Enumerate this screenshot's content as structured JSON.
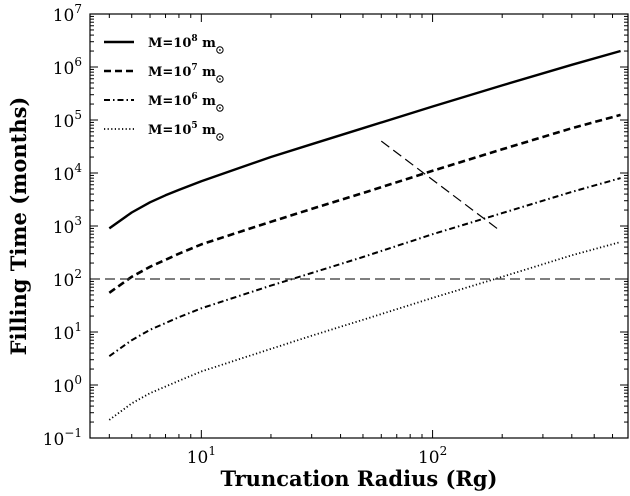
{
  "chart_data": {
    "type": "line",
    "xlabel": "Truncation Radius (Rg)",
    "ylabel": "Filling Time (months)",
    "x_scale": "log",
    "y_scale": "log",
    "xlim": [
      3.3,
      700
    ],
    "ylim": [
      0.1,
      10000000
    ],
    "x_ticks": [
      {
        "value": 10,
        "base": "10",
        "exp": "1"
      },
      {
        "value": 100,
        "base": "10",
        "exp": "2"
      }
    ],
    "y_ticks": [
      {
        "value": 0.1,
        "base": "10",
        "exp": "−1"
      },
      {
        "value": 1,
        "base": "10",
        "exp": "0"
      },
      {
        "value": 10,
        "base": "10",
        "exp": "1"
      },
      {
        "value": 100,
        "base": "10",
        "exp": "2"
      },
      {
        "value": 1000,
        "base": "10",
        "exp": "3"
      },
      {
        "value": 10000,
        "base": "10",
        "exp": "4"
      },
      {
        "value": 100000,
        "base": "10",
        "exp": "5"
      },
      {
        "value": 1000000,
        "base": "10",
        "exp": "6"
      },
      {
        "value": 10000000,
        "base": "10",
        "exp": "7"
      }
    ],
    "grid": false,
    "legend_position": "top-left",
    "series": [
      {
        "name": "M=10^8 m_sun",
        "label_main": "M=10",
        "label_exp": "8",
        "label_unit": "m",
        "style": "solid",
        "x": [
          4,
          5,
          6,
          7,
          8,
          10,
          15,
          20,
          30,
          50,
          100,
          200,
          400,
          650
        ],
        "y": [
          900,
          1800,
          2800,
          3800,
          4800,
          7000,
          13000,
          20000,
          35000,
          70000,
          180000,
          450000,
          1100000,
          2000000
        ]
      },
      {
        "name": "M=10^7 m_sun",
        "label_main": "M=10",
        "label_exp": "7",
        "label_unit": "m",
        "style": "dashed",
        "x": [
          4,
          5,
          6,
          8,
          10,
          15,
          20,
          30,
          50,
          100,
          200,
          400,
          650
        ],
        "y": [
          55,
          110,
          170,
          300,
          450,
          800,
          1200,
          2100,
          4200,
          11000,
          28000,
          70000,
          125000
        ]
      },
      {
        "name": "M=10^6 m_sun",
        "label_main": "M=10",
        "label_exp": "6",
        "label_unit": "m",
        "style": "dashdot",
        "x": [
          4,
          5,
          6,
          8,
          10,
          15,
          20,
          30,
          50,
          100,
          200,
          400,
          650
        ],
        "y": [
          3.5,
          7,
          11,
          19,
          28,
          50,
          75,
          130,
          260,
          700,
          1750,
          4400,
          8000
        ]
      },
      {
        "name": "M=10^5 m_sun",
        "label_main": "M=10",
        "label_exp": "5",
        "label_unit": "m",
        "style": "dotted",
        "x": [
          4,
          5,
          6,
          8,
          10,
          15,
          20,
          30,
          50,
          100,
          200,
          400,
          650
        ],
        "y": [
          0.22,
          0.45,
          0.7,
          1.2,
          1.8,
          3.2,
          4.8,
          8.5,
          17,
          44,
          110,
          280,
          500
        ]
      }
    ],
    "reference_lines": [
      {
        "kind": "horizontal",
        "y": 100,
        "style": "long-dash"
      },
      {
        "kind": "segment",
        "style": "long-dash",
        "x": [
          60,
          190
        ],
        "y": [
          40000,
          900
        ]
      }
    ]
  }
}
